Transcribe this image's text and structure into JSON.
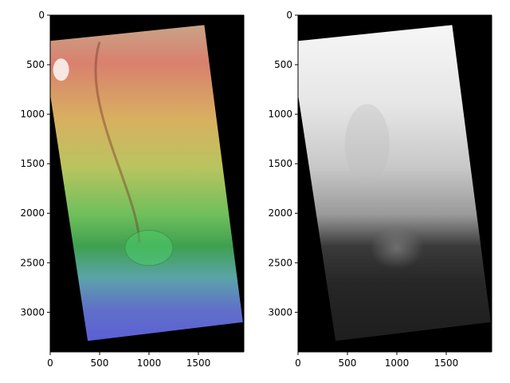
{
  "chart_data": [
    {
      "type": "image",
      "content": "color-shaded-elevation-map",
      "colormap": "hsv (red high, green mid, blue low)",
      "xlim": [
        0,
        1960
      ],
      "ylim": [
        3400,
        0
      ],
      "x_ticks": [
        0,
        500,
        1000,
        1500
      ],
      "y_ticks": [
        0,
        500,
        1000,
        1500,
        2000,
        2500,
        3000
      ],
      "footprint": [
        [
          0,
          260
        ],
        [
          1560,
          100
        ],
        [
          1950,
          3100
        ],
        [
          380,
          3290
        ],
        [
          0,
          800
        ]
      ],
      "background": "#000000"
    },
    {
      "type": "image",
      "content": "grayscale-elevation-map",
      "colormap": "gray (white high, black low)",
      "xlim": [
        0,
        1960
      ],
      "ylim": [
        3400,
        0
      ],
      "x_ticks": [
        0,
        500,
        1000,
        1500
      ],
      "y_ticks": [
        0,
        500,
        1000,
        1500,
        2000,
        2500,
        3000
      ],
      "footprint": [
        [
          0,
          260
        ],
        [
          1560,
          100
        ],
        [
          1950,
          3100
        ],
        [
          380,
          3290
        ],
        [
          0,
          800
        ]
      ],
      "background": "#000000"
    }
  ]
}
